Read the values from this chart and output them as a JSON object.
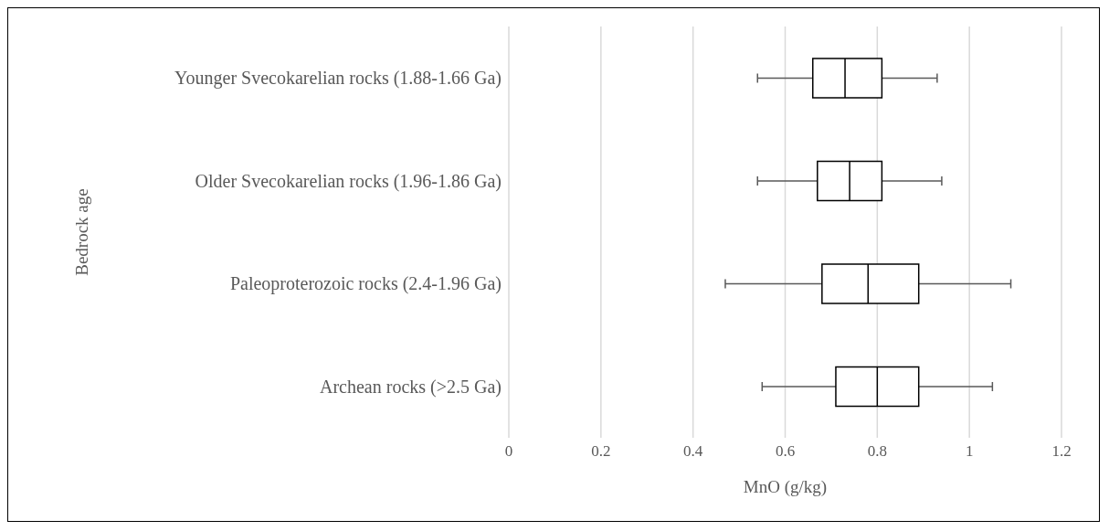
{
  "chart_data": {
    "type": "box",
    "orientation": "horizontal",
    "xlabel": "MnO (g/kg)",
    "ylabel": "Bedrock age",
    "categories": [
      "Younger Svecokarelian rocks (1.88-1.66 Ga)",
      "Older Svecokarelian rocks (1.96-1.86 Ga)",
      "Paleoproterozoic rocks (2.4-1.96 Ga)",
      "Archean rocks (>2.5 Ga)"
    ],
    "color": "#000000",
    "boxes": [
      {
        "low": 0.54,
        "q1": 0.66,
        "median": 0.73,
        "q3": 0.81,
        "high": 0.93
      },
      {
        "low": 0.54,
        "q1": 0.67,
        "median": 0.74,
        "q3": 0.81,
        "high": 0.94
      },
      {
        "low": 0.47,
        "q1": 0.68,
        "median": 0.78,
        "q3": 0.89,
        "high": 1.09
      },
      {
        "low": 0.55,
        "q1": 0.71,
        "median": 0.8,
        "q3": 0.89,
        "high": 1.05
      }
    ],
    "xlim": [
      0,
      1.2
    ],
    "xticks": [
      0,
      0.2,
      0.4,
      0.6,
      0.8,
      1,
      1.2
    ],
    "grid": "x",
    "legend": false
  }
}
